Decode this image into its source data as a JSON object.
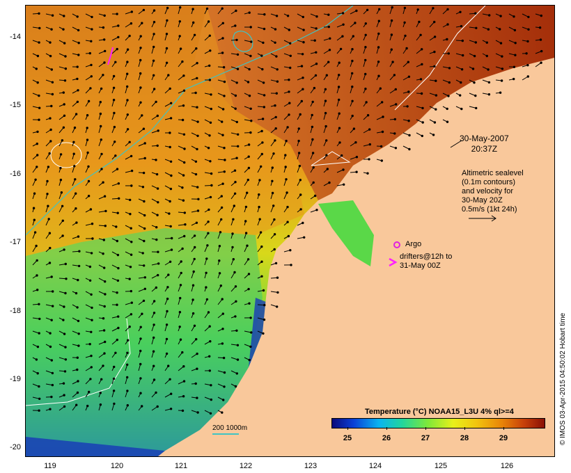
{
  "map": {
    "timestamp_date": "30-May-2007",
    "timestamp_time": "20:37Z",
    "lat_ticks": [
      "-14",
      "-15",
      "-16",
      "-17",
      "-18",
      "-19",
      "-20"
    ],
    "lon_ticks": [
      "119",
      "120",
      "121",
      "122",
      "123",
      "124",
      "125",
      "126"
    ],
    "colors": {
      "land": "#f9c89b",
      "argo": "#e020e0",
      "drifter": "#ff20ff",
      "isobath": "#3ec4c4",
      "contour": "#ffffff"
    }
  },
  "legend": {
    "altimetry_line1": "Altimetric sealevel",
    "altimetry_line2": "(0.1m contours)",
    "altimetry_line3": "and velocity for",
    "altimetry_line4": "30-May 20Z",
    "altimetry_line5": "0.5m/s (1kt 24h)",
    "argo_label": "Argo",
    "drifters_line1": "drifters@12h to",
    "drifters_line2": "31-May 00Z",
    "depth_label": "200  1000m"
  },
  "colorbar": {
    "title": "Temperature (°C) NOAA15_L3U 4% ql>=4",
    "ticks": [
      "25",
      "26",
      "27",
      "28",
      "29"
    ]
  },
  "credit": "© IMOS 03-Apr-2015 04:50:02 Hobart time"
}
